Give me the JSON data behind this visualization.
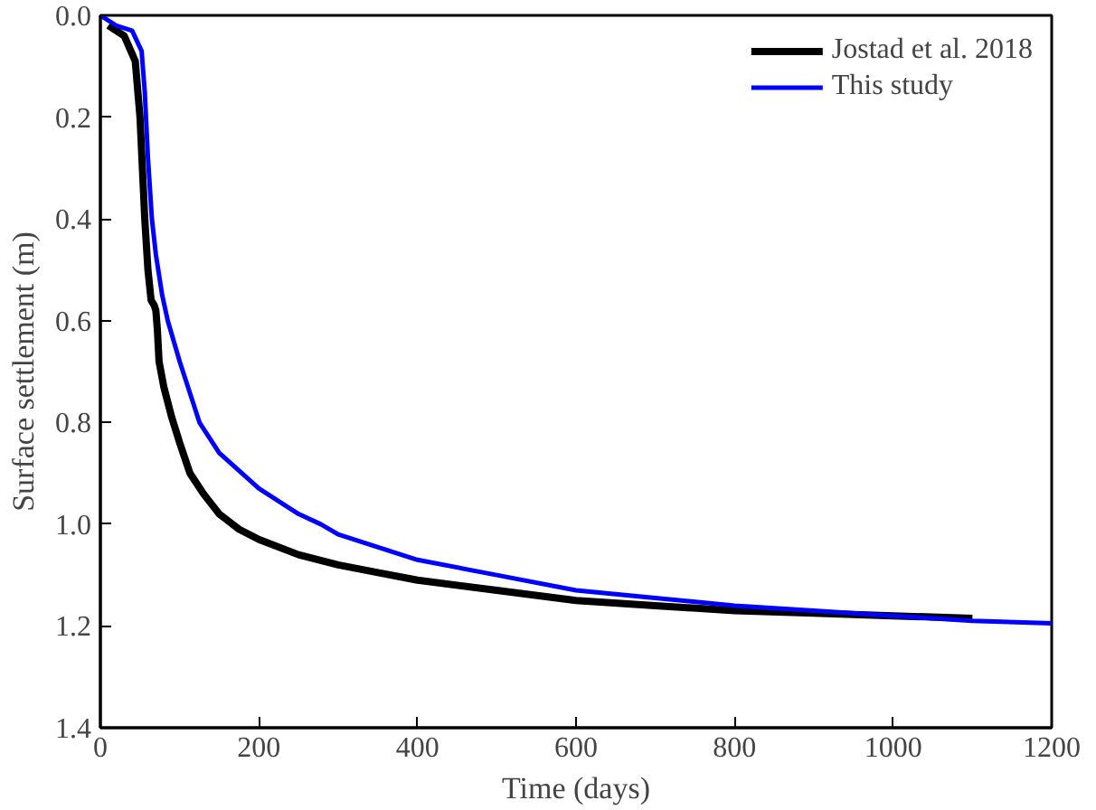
{
  "chart_data": {
    "type": "line",
    "xlabel": "Time (days)",
    "ylabel": "Surface settlement (m)",
    "xlim": [
      0,
      1200
    ],
    "ylim": [
      1.4,
      0.0
    ],
    "xticks": [
      0,
      200,
      400,
      600,
      800,
      1000,
      1200
    ],
    "yticks": [
      {
        "value": 0.0,
        "label": "0.0"
      },
      0.2,
      0.4,
      0.6,
      0.8,
      {
        "value": 1.0,
        "label": "1.0"
      },
      1.2,
      1.4
    ],
    "grid": false,
    "legend": "top right",
    "line_style": "solid",
    "series": [
      {
        "name": "Jostad et al. 2018",
        "color": "#000000",
        "x": [
          10,
          30,
          44,
          50,
          53,
          56,
          60,
          64,
          68,
          70,
          72,
          74,
          80,
          90,
          100,
          113,
          130,
          150,
          175,
          200,
          250,
          300,
          350,
          400,
          500,
          600,
          700,
          800,
          900,
          1000,
          1100
        ],
        "values": [
          0.02,
          0.04,
          0.09,
          0.2,
          0.3,
          0.4,
          0.5,
          0.56,
          0.57,
          0.58,
          0.62,
          0.68,
          0.73,
          0.79,
          0.84,
          0.9,
          0.94,
          0.98,
          1.01,
          1.03,
          1.06,
          1.08,
          1.095,
          1.11,
          1.13,
          1.15,
          1.16,
          1.17,
          1.175,
          1.18,
          1.185
        ]
      },
      {
        "name": "This study",
        "color": "#0000ff",
        "x": [
          0,
          20,
          40,
          52,
          56,
          60,
          65,
          70,
          78,
          85,
          100,
          125,
          150,
          200,
          250,
          278,
          300,
          400,
          500,
          600,
          700,
          800,
          900,
          1000,
          1100,
          1200
        ],
        "values": [
          0,
          0.02,
          0.03,
          0.07,
          0.15,
          0.28,
          0.4,
          0.47,
          0.55,
          0.6,
          0.68,
          0.8,
          0.86,
          0.93,
          0.98,
          1.0,
          1.02,
          1.07,
          1.1,
          1.13,
          1.145,
          1.16,
          1.17,
          1.18,
          1.19,
          1.195
        ]
      }
    ]
  }
}
